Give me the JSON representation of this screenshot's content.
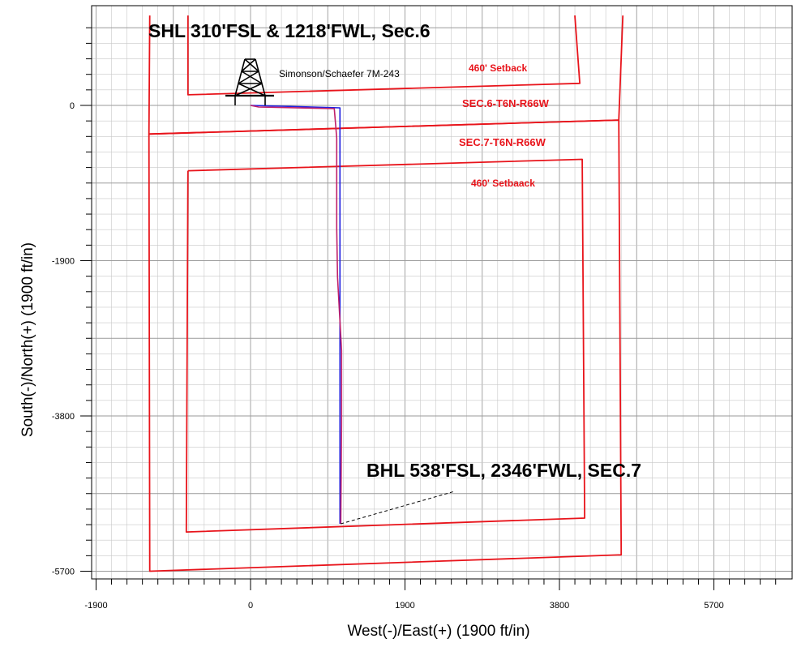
{
  "colors": {
    "boundary": "#e8141b",
    "plan": "#1f1fe0",
    "actual": "#c0206a",
    "grid_minor": "#c8c8c8",
    "grid_major": "#9a9a9a"
  },
  "chart_data": {
    "type": "line",
    "title": "",
    "xlabel": "West(-)/East(+) (1900 ft/in)",
    "ylabel": "South(-)/North(+) (1900 ft/in)",
    "xlim": [
      -1900,
      6600
    ],
    "ylim": [
      -5800,
      1100
    ],
    "x_ticks": [
      -1900,
      0,
      1900,
      3800,
      5700
    ],
    "y_ticks": [
      0,
      -1900,
      -3800,
      -5700
    ],
    "grid": true,
    "annotations": {
      "shl": "SHL 310'FSL & 1218'FWL, Sec.6",
      "bhl": "BHL 538'FSL, 2346'FWL, SEC.7",
      "well": "Simonson/Schaefer 7M-243",
      "setback_top": "460' Setback",
      "sec6": "SEC.6-T6N-R66W",
      "sec7": "SEC.7-T6N-R66W",
      "setback_bottom": "460' Setbaack"
    },
    "series": [
      {
        "id": "sec6_boundary",
        "x": [
          -1240,
          -1250,
          4530,
          4580
        ],
        "y": [
          1100,
          -350,
          -180,
          1100
        ]
      },
      {
        "id": "sec7_boundary",
        "x": [
          -1250,
          -1240,
          4560,
          4530,
          -1250
        ],
        "y": [
          -350,
          -5700,
          -5500,
          -180,
          -350
        ]
      },
      {
        "id": "setback_sec6",
        "x": [
          -770,
          -770,
          4050,
          3990
        ],
        "y": [
          1100,
          130,
          270,
          1100
        ]
      },
      {
        "id": "setback_sec7",
        "x": [
          -770,
          -790,
          4110,
          4080,
          -770
        ],
        "y": [
          -800,
          -5220,
          -5050,
          -660,
          -800
        ]
      },
      {
        "id": "plan_wellpath",
        "x": [
          0,
          1100,
          1100,
          1100
        ],
        "y": [
          0,
          -30,
          -2500,
          -5120
        ]
      },
      {
        "id": "actual_wellpath",
        "x": [
          0,
          100,
          1030,
          1060,
          1060,
          1070,
          1120,
          1120,
          1110
        ],
        "y": [
          0,
          -20,
          -40,
          -400,
          -1500,
          -2100,
          -3000,
          -3900,
          -5120
        ]
      }
    ],
    "bhl_leader": {
      "x": [
        1110,
        2520
      ],
      "y": [
        -5120,
        -4720
      ]
    }
  }
}
